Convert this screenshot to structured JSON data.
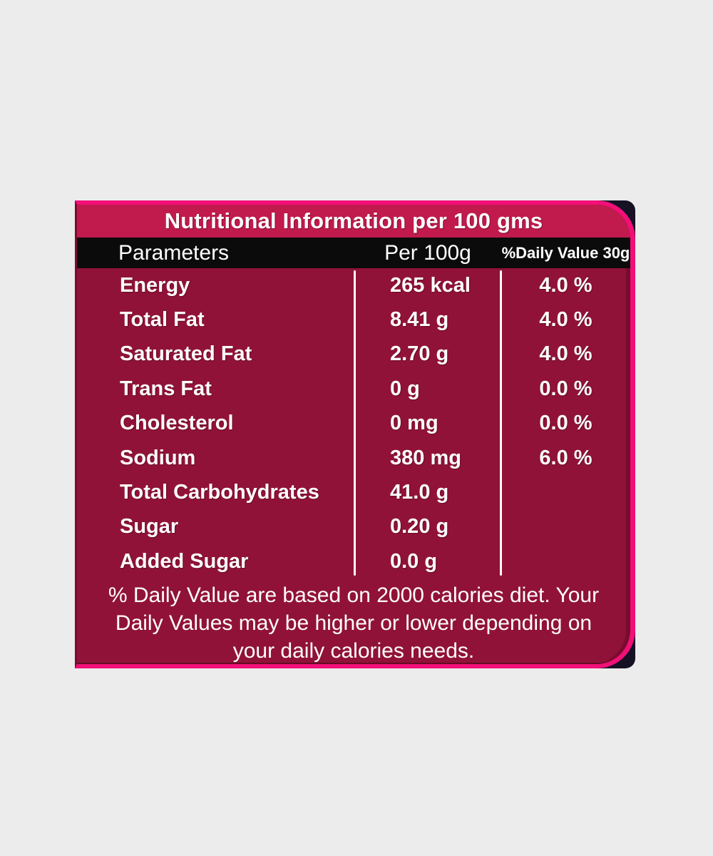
{
  "page": {
    "background_color": "#ececec"
  },
  "label": {
    "title": "Nutritional Information per 100 gms",
    "columns": {
      "parameter": "Parameters",
      "per_100g": "Per 100g",
      "daily_value": "%Daily Value 30g"
    },
    "rows": [
      {
        "name": "Energy",
        "per_100g": "265 kcal",
        "daily_value": "4.0 %"
      },
      {
        "name": "Total Fat",
        "per_100g": "8.41 g",
        "daily_value": "4.0 %"
      },
      {
        "name": "Saturated Fat",
        "per_100g": "2.70 g",
        "daily_value": "4.0 %"
      },
      {
        "name": "Trans Fat",
        "per_100g": "0 g",
        "daily_value": "0.0 %"
      },
      {
        "name": "Cholesterol",
        "per_100g": "0 mg",
        "daily_value": "0.0 %"
      },
      {
        "name": "Sodium",
        "per_100g": "380 mg",
        "daily_value": "6.0 %"
      },
      {
        "name": "Total Carbohydrates",
        "per_100g": "41.0 g",
        "daily_value": ""
      },
      {
        "name": "Sugar",
        "per_100g": "0.20 g",
        "daily_value": ""
      },
      {
        "name": "Added Sugar",
        "per_100g": "0.0 g",
        "daily_value": ""
      }
    ],
    "footnote": "% Daily Value are based on 2000 calories diet. Your Daily Values may be higher or lower depending on your daily calories needs.",
    "footnote_lines": [
      "% Daily Value are based on 2000 calories diet. Your",
      "Daily Values may be higher or lower depending on",
      "your daily calories needs."
    ],
    "colors": {
      "title_band": "#c11a4d",
      "body": "#911238",
      "header_band": "#0b0b0b",
      "border_pink": "#f20f78",
      "corner_navy": "#171126",
      "text": "#ffffff",
      "inner_shade": "#780c2e"
    }
  }
}
